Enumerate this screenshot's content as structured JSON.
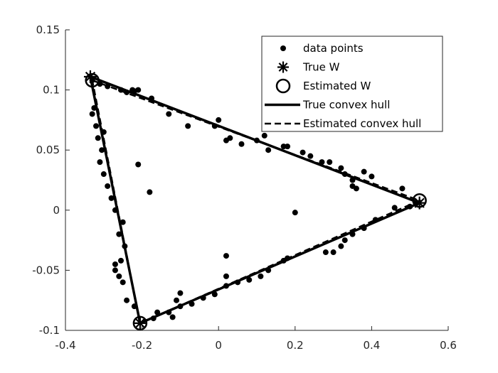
{
  "chart_data": {
    "type": "scatter",
    "title": "",
    "xlabel": "",
    "ylabel": "",
    "xlim": [
      -0.4,
      0.6
    ],
    "ylim": [
      -0.1,
      0.15
    ],
    "xticks": [
      -0.4,
      -0.2,
      0,
      0.2,
      0.4,
      0.6
    ],
    "yticks": [
      -0.1,
      -0.05,
      0,
      0.05,
      0.1,
      0.15
    ],
    "xtick_labels": [
      "-0.4",
      "-0.2",
      "0",
      "0.2",
      "0.4",
      "0.6"
    ],
    "ytick_labels": [
      "-0.1",
      "-0.05",
      "0",
      "0.05",
      "0.1",
      "0.15"
    ],
    "grid": false,
    "legend_position": "top-right",
    "legend": [
      {
        "label": "data points",
        "marker": "dot"
      },
      {
        "label": "True W",
        "marker": "asterisk"
      },
      {
        "label": "Estimated W",
        "marker": "circle"
      },
      {
        "label": "True convex hull",
        "line": "solid"
      },
      {
        "label": "Estimated convex hull",
        "line": "dashed"
      }
    ],
    "true_W": [
      [
        -0.335,
        0.111
      ],
      [
        0.525,
        0.006
      ],
      [
        -0.205,
        -0.094
      ]
    ],
    "estimated_W": [
      [
        -0.33,
        0.108
      ],
      [
        0.525,
        0.008
      ],
      [
        -0.205,
        -0.094
      ]
    ],
    "data_points": [
      [
        -0.33,
        0.108
      ],
      [
        -0.31,
        0.105
      ],
      [
        -0.29,
        0.103
      ],
      [
        -0.255,
        0.1
      ],
      [
        -0.24,
        0.098
      ],
      [
        -0.225,
        0.1
      ],
      [
        -0.22,
        0.099
      ],
      [
        -0.21,
        0.1
      ],
      [
        -0.175,
        0.093
      ],
      [
        -0.13,
        0.08
      ],
      [
        -0.08,
        0.07
      ],
      [
        -0.01,
        0.07
      ],
      [
        0.0,
        0.075
      ],
      [
        0.02,
        0.058
      ],
      [
        0.03,
        0.06
      ],
      [
        0.06,
        0.055
      ],
      [
        0.1,
        0.058
      ],
      [
        0.12,
        0.062
      ],
      [
        0.13,
        0.05
      ],
      [
        0.17,
        0.053
      ],
      [
        0.18,
        0.053
      ],
      [
        0.22,
        0.048
      ],
      [
        0.24,
        0.045
      ],
      [
        0.27,
        0.04
      ],
      [
        0.29,
        0.04
      ],
      [
        0.32,
        0.035
      ],
      [
        0.33,
        0.03
      ],
      [
        0.35,
        0.025
      ],
      [
        0.38,
        0.032
      ],
      [
        0.4,
        0.028
      ],
      [
        0.35,
        0.02
      ],
      [
        0.36,
        0.018
      ],
      [
        0.48,
        0.018
      ],
      [
        0.5,
        0.003
      ],
      [
        0.46,
        0.002
      ],
      [
        0.41,
        -0.008
      ],
      [
        0.38,
        -0.015
      ],
      [
        0.35,
        -0.02
      ],
      [
        0.33,
        -0.025
      ],
      [
        0.32,
        -0.03
      ],
      [
        0.3,
        -0.035
      ],
      [
        0.28,
        -0.035
      ],
      [
        0.18,
        -0.04
      ],
      [
        0.17,
        -0.042
      ],
      [
        0.13,
        -0.05
      ],
      [
        0.11,
        -0.055
      ],
      [
        0.08,
        -0.058
      ],
      [
        0.05,
        -0.06
      ],
      [
        0.02,
        -0.063
      ],
      [
        -0.01,
        -0.07
      ],
      [
        -0.04,
        -0.073
      ],
      [
        -0.07,
        -0.078
      ],
      [
        -0.1,
        -0.08
      ],
      [
        -0.11,
        -0.075
      ],
      [
        -0.13,
        -0.085
      ],
      [
        -0.16,
        -0.085
      ],
      [
        -0.12,
        -0.089
      ],
      [
        -0.1,
        -0.069
      ],
      [
        -0.17,
        -0.09
      ],
      [
        -0.22,
        -0.08
      ],
      [
        -0.24,
        -0.075
      ],
      [
        -0.25,
        -0.06
      ],
      [
        -0.26,
        -0.055
      ],
      [
        -0.27,
        -0.05
      ],
      [
        -0.27,
        -0.045
      ],
      [
        -0.255,
        -0.042
      ],
      [
        -0.245,
        -0.03
      ],
      [
        -0.26,
        -0.02
      ],
      [
        -0.25,
        -0.01
      ],
      [
        -0.27,
        0.0
      ],
      [
        -0.28,
        0.01
      ],
      [
        -0.29,
        0.02
      ],
      [
        -0.3,
        0.03
      ],
      [
        -0.31,
        0.04
      ],
      [
        -0.305,
        0.05
      ],
      [
        -0.315,
        0.06
      ],
      [
        -0.32,
        0.07
      ],
      [
        -0.33,
        0.08
      ],
      [
        -0.325,
        0.085
      ],
      [
        -0.3,
        0.065
      ],
      [
        -0.21,
        0.038
      ],
      [
        -0.18,
        0.015
      ],
      [
        0.2,
        -0.002
      ],
      [
        0.02,
        -0.038
      ],
      [
        0.02,
        -0.055
      ]
    ]
  }
}
